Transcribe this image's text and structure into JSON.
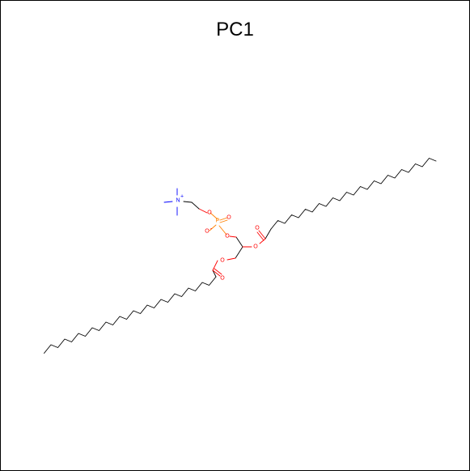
{
  "title": "PC1",
  "molecule": {
    "atom_labels": {
      "nitrogen": "N",
      "charge_plus": "+",
      "phosphorus": "P",
      "oxygen": "O",
      "charge_minus": "-"
    },
    "colors": {
      "bond": "#000000",
      "oxygen": "#ff0000",
      "nitrogen": "#0000ff",
      "phosphorus": "#ff8000"
    }
  }
}
